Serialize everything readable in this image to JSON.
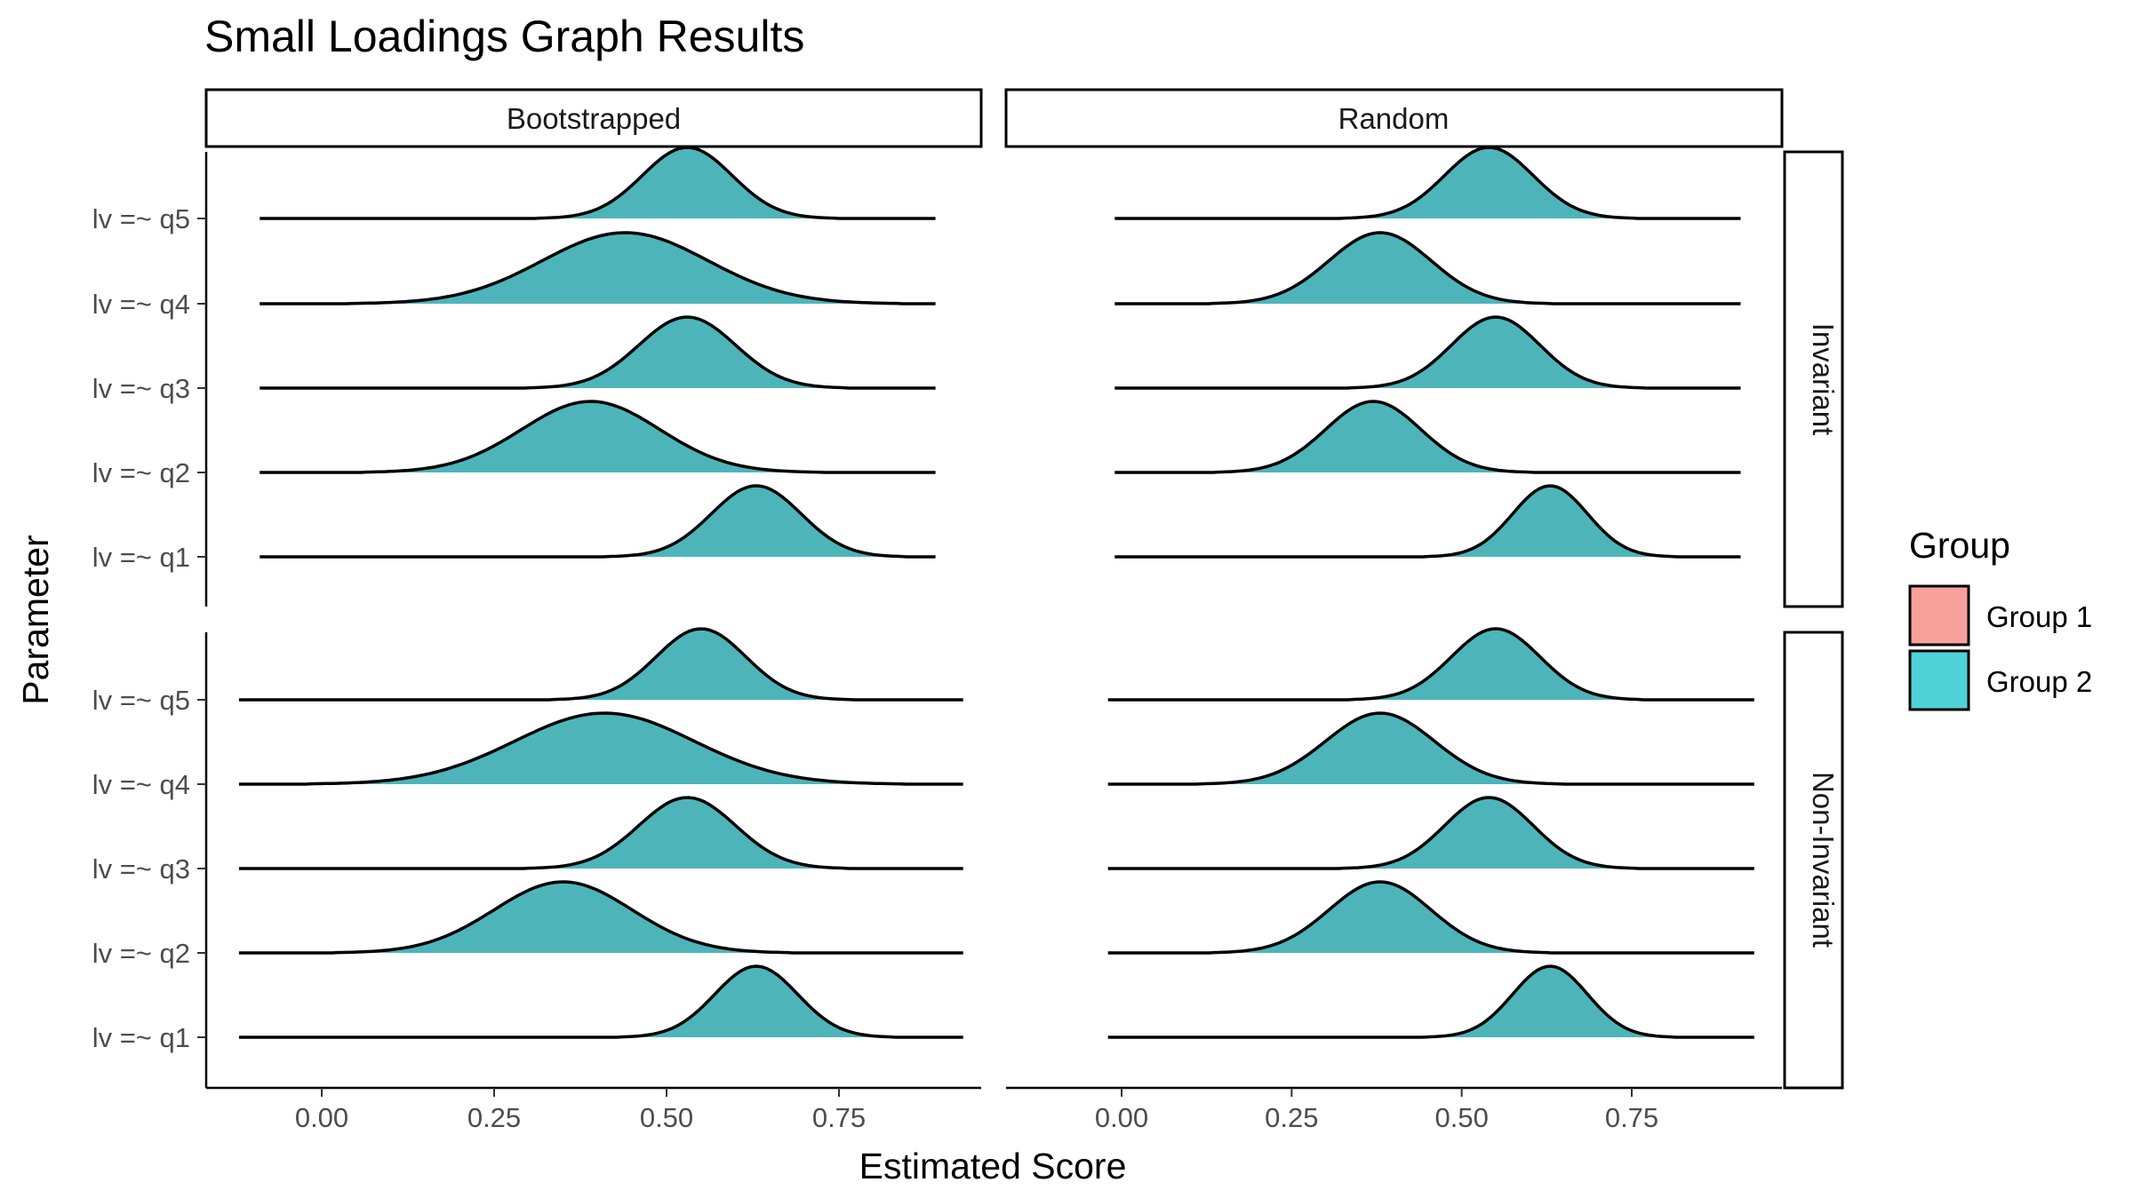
{
  "chart_data": {
    "type": "ridgeline-density",
    "title": "Small Loadings Graph Results",
    "xlabel": "Estimated Score",
    "ylabel": "Parameter",
    "x_ticks": [
      "0.00",
      "0.25",
      "0.50",
      "0.75"
    ],
    "x_tick_values": [
      0,
      0.25,
      0.5,
      0.75
    ],
    "xlim": [
      -0.18,
      0.97
    ],
    "grid": false,
    "columns": [
      "Bootstrapped",
      "Random"
    ],
    "rows": [
      "Invariant",
      "Non-Invariant"
    ],
    "parameters": [
      "lv =~ q1",
      "lv =~ q2",
      "lv =~ q3",
      "lv =~ q4",
      "lv =~ q5"
    ],
    "legend": {
      "title": "Group",
      "position": "right",
      "entries": [
        {
          "name": "Group 1",
          "color": "#F8A09A"
        },
        {
          "name": "Group 2",
          "color": "#4FD2D6"
        }
      ]
    },
    "fill_color_visible": "#4DB5BA",
    "panels": [
      {
        "column": "Bootstrapped",
        "row": "Invariant",
        "x_range": [
          -0.09,
          0.89
        ],
        "densities": [
          {
            "parameter": "lv =~ q1",
            "peak": 0.63,
            "sd": 0.065
          },
          {
            "parameter": "lv =~ q2",
            "peak": 0.39,
            "sd": 0.1
          },
          {
            "parameter": "lv =~ q3",
            "peak": 0.53,
            "sd": 0.07
          },
          {
            "parameter": "lv =~ q4",
            "peak": 0.44,
            "sd": 0.12
          },
          {
            "parameter": "lv =~ q5",
            "peak": 0.53,
            "sd": 0.065
          }
        ]
      },
      {
        "column": "Random",
        "row": "Invariant",
        "x_range": [
          -0.01,
          0.91
        ],
        "densities": [
          {
            "parameter": "lv =~ q1",
            "peak": 0.63,
            "sd": 0.055
          },
          {
            "parameter": "lv =~ q2",
            "peak": 0.37,
            "sd": 0.07
          },
          {
            "parameter": "lv =~ q3",
            "peak": 0.55,
            "sd": 0.065
          },
          {
            "parameter": "lv =~ q4",
            "peak": 0.38,
            "sd": 0.075
          },
          {
            "parameter": "lv =~ q5",
            "peak": 0.54,
            "sd": 0.065
          }
        ]
      },
      {
        "column": "Bootstrapped",
        "row": "Non-Invariant",
        "x_range": [
          -0.12,
          0.93
        ],
        "densities": [
          {
            "parameter": "lv =~ q1",
            "peak": 0.63,
            "sd": 0.06
          },
          {
            "parameter": "lv =~ q2",
            "peak": 0.35,
            "sd": 0.1
          },
          {
            "parameter": "lv =~ q3",
            "peak": 0.53,
            "sd": 0.07
          },
          {
            "parameter": "lv =~ q4",
            "peak": 0.41,
            "sd": 0.13
          },
          {
            "parameter": "lv =~ q5",
            "peak": 0.55,
            "sd": 0.065
          }
        ]
      },
      {
        "column": "Random",
        "row": "Non-Invariant",
        "x_range": [
          -0.02,
          0.93
        ],
        "densities": [
          {
            "parameter": "lv =~ q1",
            "peak": 0.63,
            "sd": 0.055
          },
          {
            "parameter": "lv =~ q2",
            "peak": 0.38,
            "sd": 0.075
          },
          {
            "parameter": "lv =~ q3",
            "peak": 0.54,
            "sd": 0.065
          },
          {
            "parameter": "lv =~ q4",
            "peak": 0.38,
            "sd": 0.08
          },
          {
            "parameter": "lv =~ q5",
            "peak": 0.55,
            "sd": 0.065
          }
        ]
      }
    ]
  }
}
